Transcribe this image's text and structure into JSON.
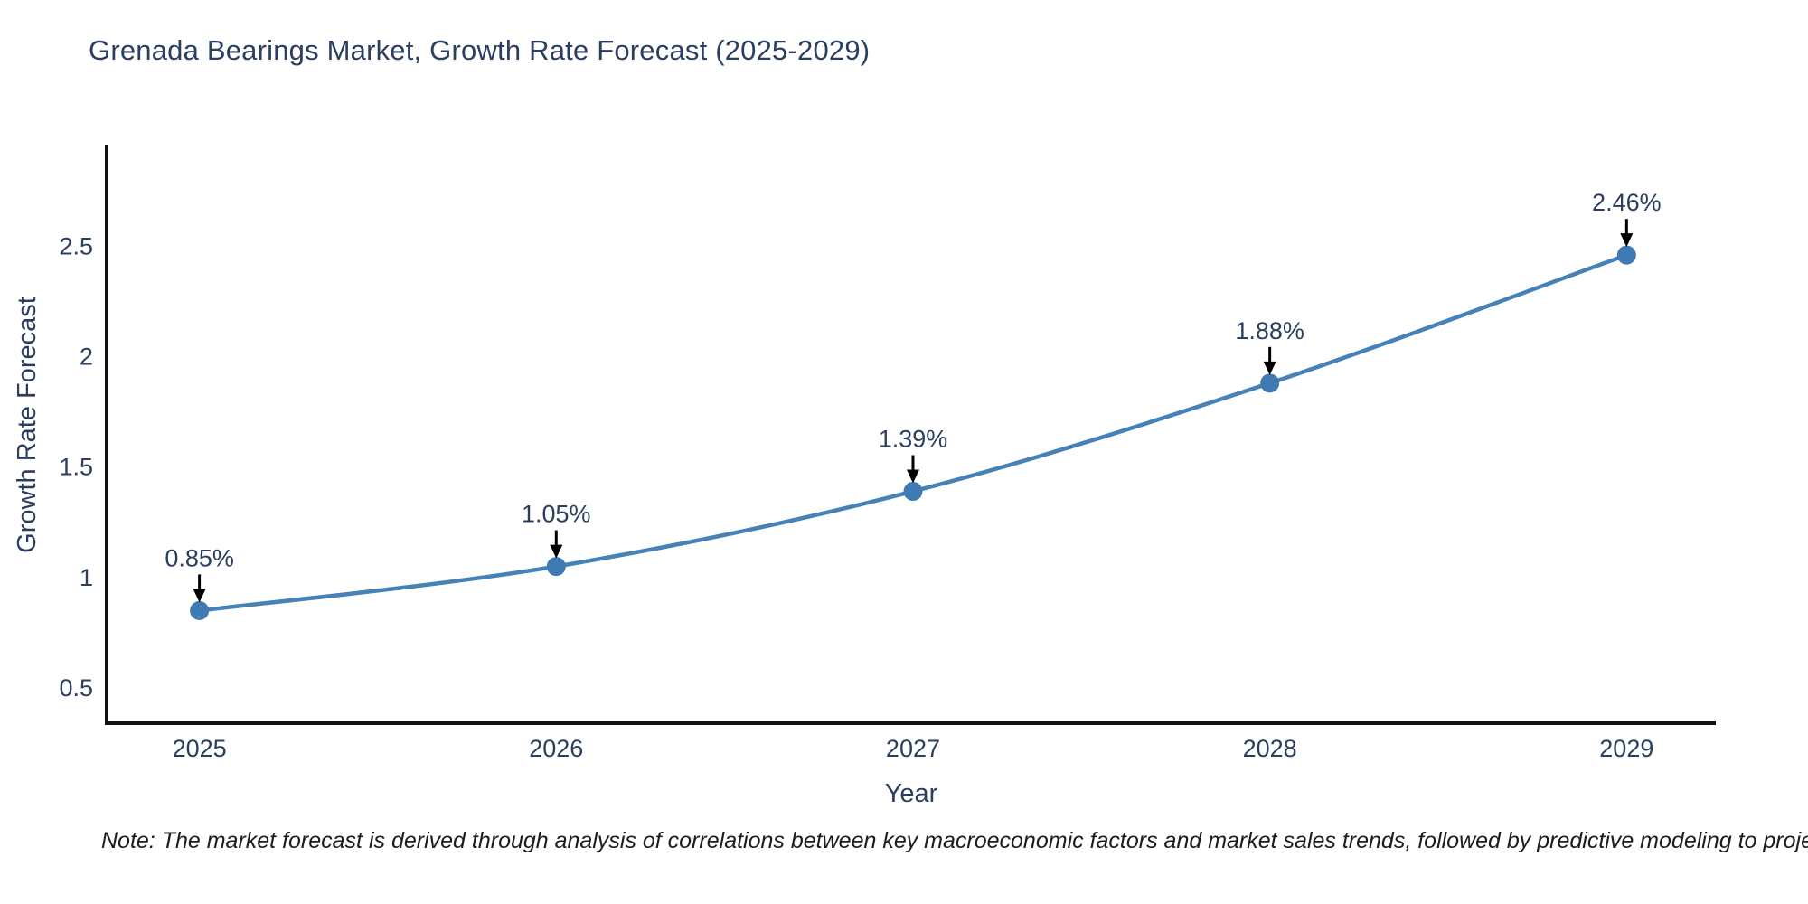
{
  "chart_data": {
    "type": "line",
    "title": "Grenada Bearings Market, Growth Rate Forecast (2025-2029)",
    "xlabel": "Year",
    "ylabel": "Growth Rate Forecast",
    "x": [
      2025,
      2026,
      2027,
      2028,
      2029
    ],
    "series": [
      {
        "name": "Growth Rate Forecast",
        "values": [
          0.85,
          1.05,
          1.39,
          1.88,
          2.46
        ]
      }
    ],
    "point_labels": [
      "0.85%",
      "1.05%",
      "1.39%",
      "1.88%",
      "2.46%"
    ],
    "yticks": [
      0.5,
      1,
      1.5,
      2,
      2.5
    ],
    "xlim": [
      2024.74,
      2029.25
    ],
    "ylim": [
      0.34,
      2.96
    ],
    "line_shape": "spline",
    "grid": false,
    "legend": "none",
    "colors": {
      "line": "#4681b8",
      "marker": "#3f7ab2",
      "axis_line": "#111111",
      "text": "#2a3f5f",
      "annotation_arrow": "#000000"
    }
  },
  "note": "Note: The market forecast is derived through analysis of correlations between key macroeconomic factors and market sales trends, followed by predictive modeling to project future sales"
}
